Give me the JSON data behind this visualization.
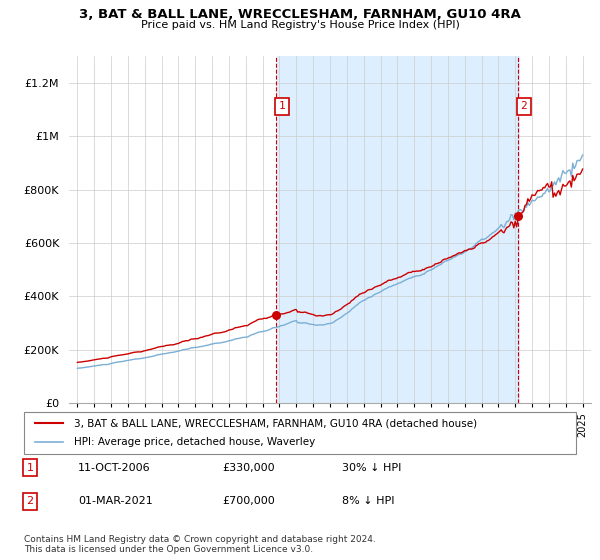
{
  "title": "3, BAT & BALL LANE, WRECCLESHAM, FARNHAM, GU10 4RA",
  "subtitle": "Price paid vs. HM Land Registry's House Price Index (HPI)",
  "footnote": "Contains HM Land Registry data © Crown copyright and database right 2024.\nThis data is licensed under the Open Government Licence v3.0.",
  "legend_line1": "3, BAT & BALL LANE, WRECCLESHAM, FARNHAM, GU10 4RA (detached house)",
  "legend_line2": "HPI: Average price, detached house, Waverley",
  "annotation1": {
    "num": "1",
    "date": "11-OCT-2006",
    "price": "£330,000",
    "pct": "30% ↓ HPI"
  },
  "annotation2": {
    "num": "2",
    "date": "01-MAR-2021",
    "price": "£700,000",
    "pct": "8% ↓ HPI"
  },
  "vline1_x": 2006.79,
  "vline2_x": 2021.17,
  "sale1_x": 2006.79,
  "sale1_y": 330000,
  "sale2_x": 2021.17,
  "sale2_y": 700000,
  "ylim": [
    0,
    1300000
  ],
  "xlim": [
    1994.5,
    2025.5
  ],
  "price_color": "#cc0000",
  "hpi_color": "#7bafd4",
  "vline_color": "#cc0000",
  "shade_color": "#ddeeff",
  "background_color": "#ffffff"
}
